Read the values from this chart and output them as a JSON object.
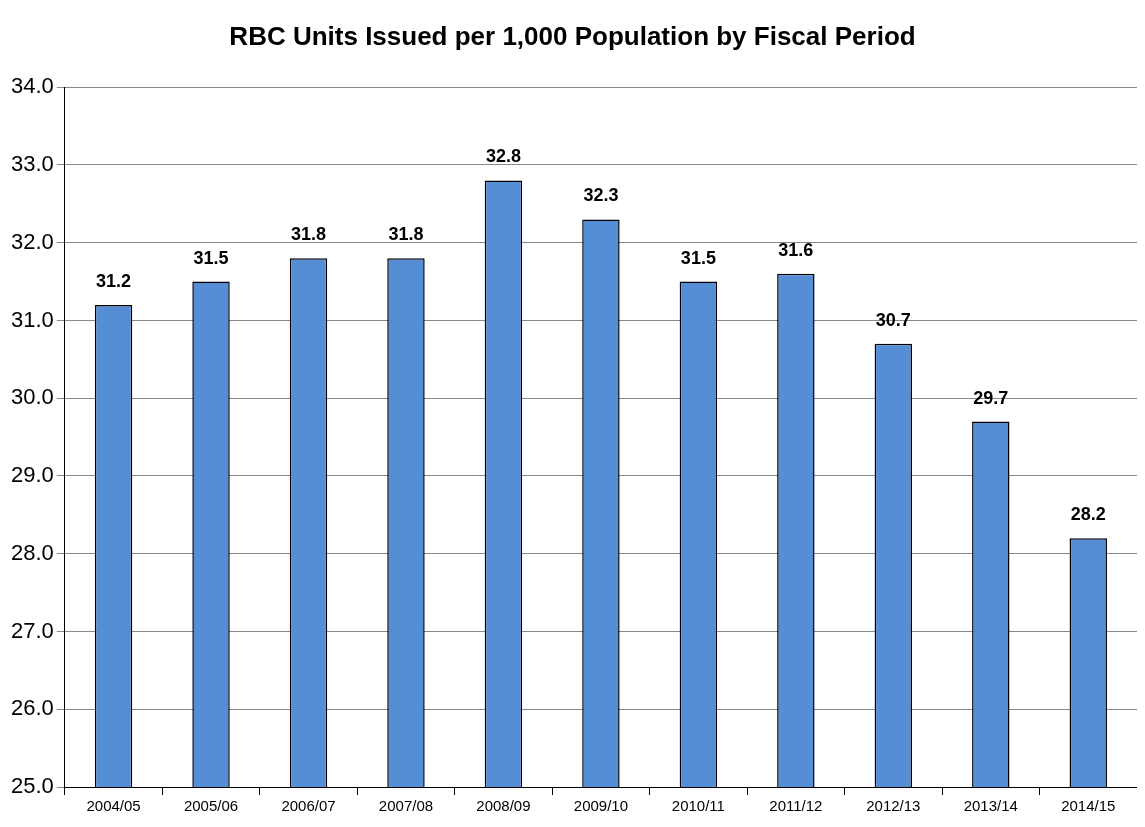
{
  "chart_data": {
    "type": "bar",
    "title": "RBC Units Issued per 1,000 Population by Fiscal Period",
    "categories": [
      "2004/05",
      "2005/06",
      "2006/07",
      "2007/08",
      "2008/09",
      "2009/10",
      "2010/11",
      "2011/12",
      "2012/13",
      "2013/14",
      "2014/15"
    ],
    "values": [
      31.2,
      31.5,
      31.8,
      31.8,
      32.8,
      32.3,
      31.5,
      31.6,
      30.7,
      29.7,
      28.2
    ],
    "color": "#558ed5",
    "ylim": [
      25,
      34
    ],
    "yticks": [
      {
        "value": 25,
        "label": "25.0"
      },
      {
        "value": 26,
        "label": "26.0"
      },
      {
        "value": 27,
        "label": "27.0"
      },
      {
        "value": 28,
        "label": "28.0"
      },
      {
        "value": 29,
        "label": "29.0"
      },
      {
        "value": 30,
        "label": "30.0"
      },
      {
        "value": 31,
        "label": "31.0"
      },
      {
        "value": 32,
        "label": "32.0"
      },
      {
        "value": 33,
        "label": "33.0"
      },
      {
        "value": 34,
        "label": "34.0"
      }
    ],
    "grid": "y",
    "data_labels": true,
    "legend": false
  }
}
